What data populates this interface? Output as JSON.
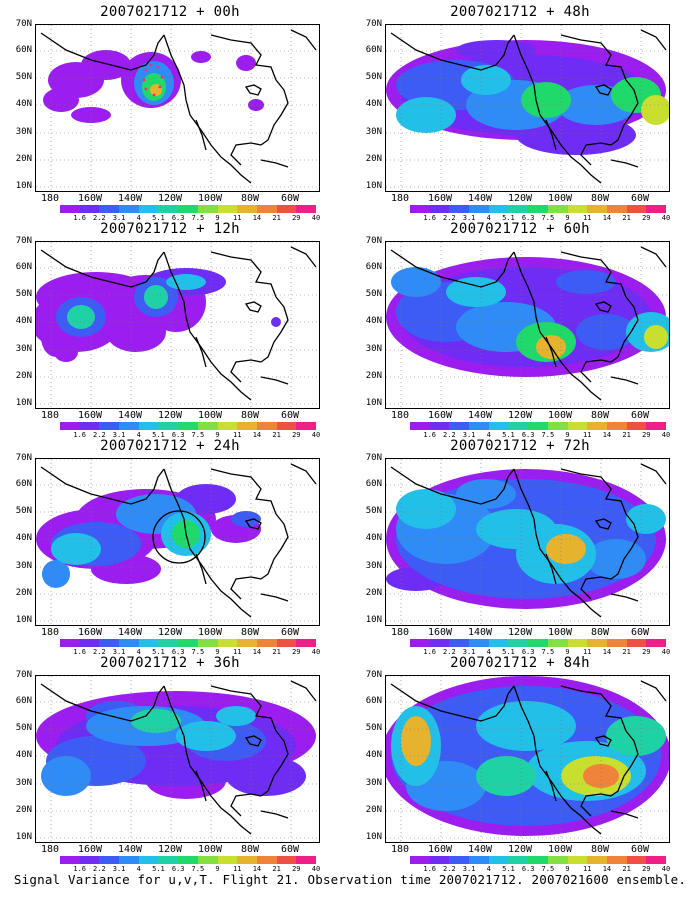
{
  "figure": {
    "caption": "Signal Variance for u,v,T. Flight 21. Observation time 2007021712. 2007021600 ensemble."
  },
  "axes": {
    "lat_labels": [
      "70N",
      "60N",
      "50N",
      "40N",
      "30N",
      "20N",
      "10N"
    ],
    "lon_labels": [
      "180",
      "160W",
      "140W",
      "120W",
      "100W",
      "80W",
      "60W"
    ]
  },
  "colorbar": {
    "labels": [
      "1.6",
      "2.2",
      "3.1",
      "4",
      "5.1",
      "6.3",
      "7.5",
      "9",
      "11",
      "14",
      "21",
      "29",
      "40"
    ],
    "colors": [
      "#ffffff",
      "#9b1df0",
      "#6e2cf4",
      "#3d5cf6",
      "#2f8cf6",
      "#22c0e8",
      "#1fd2a6",
      "#1fd96a",
      "#84e041",
      "#c8df2f",
      "#e6b32e",
      "#f0823a",
      "#f04f45",
      "#f01f87"
    ]
  },
  "panels": [
    {
      "title": "2007021712 + 00h",
      "forecast_hour": 0,
      "marker": "target-dots"
    },
    {
      "title": "2007021712 + 12h",
      "forecast_hour": 12,
      "marker": "none"
    },
    {
      "title": "2007021712 + 24h",
      "forecast_hour": 24,
      "marker": "circle"
    },
    {
      "title": "2007021712 + 36h",
      "forecast_hour": 36,
      "marker": "none"
    },
    {
      "title": "2007021712 + 48h",
      "forecast_hour": 48,
      "marker": "none"
    },
    {
      "title": "2007021712 + 60h",
      "forecast_hour": 60,
      "marker": "none"
    },
    {
      "title": "2007021712 + 72h",
      "forecast_hour": 72,
      "marker": "none"
    },
    {
      "title": "2007021712 + 84h",
      "forecast_hour": 84,
      "marker": "none"
    }
  ]
}
